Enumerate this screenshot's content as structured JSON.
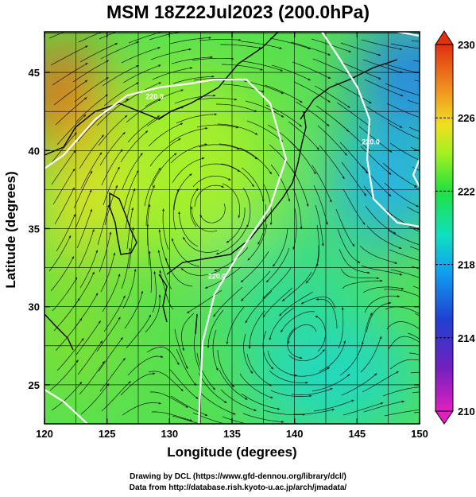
{
  "title": "MSM 18Z22Jul2023 (200.0hPa)",
  "xlabel": "Longitude (degrees)",
  "ylabel": "Latitude  (degrees)",
  "credits": [
    "Drawing by DCL (https://www.gfd-dennou.org/library/dcl/)",
    "Data from http://database.rish.kyoto-u.ac.jp/arch/jmadata/"
  ],
  "chart_data": {
    "type": "heatmap",
    "xlim": [
      120,
      150
    ],
    "ylim": [
      22.5,
      47.6
    ],
    "xticks": [
      120,
      125,
      130,
      135,
      140,
      145,
      150
    ],
    "yticks": [
      25,
      30,
      35,
      40,
      45
    ],
    "colorbar": {
      "range": [
        210,
        230
      ],
      "ticks": [
        210,
        214,
        218,
        222,
        226,
        230
      ],
      "colors": [
        "#e020c0",
        "#7020c0",
        "#2040d0",
        "#10a0f0",
        "#10e0c0",
        "#20e040",
        "#a0f020",
        "#f0e020",
        "#f09020",
        "#e03010"
      ]
    },
    "contour_labels": [
      {
        "text": "220.0",
        "lon": 128.8,
        "lat": 43.3
      },
      {
        "text": "220.0",
        "lon": 133.8,
        "lat": 31.8
      },
      {
        "text": "220.0",
        "lon": 146.1,
        "lat": 40.4
      }
    ]
  }
}
